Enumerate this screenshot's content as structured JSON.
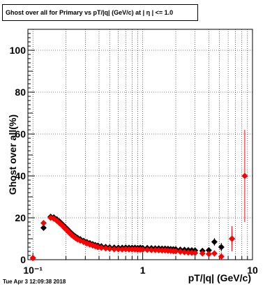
{
  "title": "Ghost over all for Primary vs pT/|q| (GeV/c) at |  η | <= 1.0",
  "timestamp": "Tue Apr  3 12:09:38 2018",
  "chart_data": {
    "type": "scatter",
    "xlabel": "pT/|q| (GeV/c)",
    "ylabel": "Ghost over all(%)",
    "xscale": "log",
    "xlim": [
      0.09,
      10
    ],
    "ylim": [
      0,
      110
    ],
    "grid": true,
    "x_ticks": [
      {
        "value": 0.1,
        "label": "10⁻¹"
      },
      {
        "value": 1,
        "label": "1"
      },
      {
        "value": 10,
        "label": "10"
      }
    ],
    "y_ticks": [
      {
        "value": 0,
        "label": "0"
      },
      {
        "value": 20,
        "label": "20"
      },
      {
        "value": 40,
        "label": "40"
      },
      {
        "value": 60,
        "label": "60"
      },
      {
        "value": 80,
        "label": "80"
      },
      {
        "value": 100,
        "label": "100"
      }
    ],
    "series": [
      {
        "color": "#000000",
        "marker": "diamond",
        "points": [
          [
            0.1,
            0.8,
            1.2
          ],
          [
            0.125,
            15.2,
            1.2
          ],
          [
            0.145,
            20.5,
            0.8
          ],
          [
            0.155,
            20.2,
            0.6
          ],
          [
            0.165,
            19.3,
            0.5
          ],
          [
            0.175,
            18.2,
            0.5
          ],
          [
            0.185,
            17.0,
            0.4
          ],
          [
            0.195,
            15.8,
            0.4
          ],
          [
            0.205,
            14.7,
            0.4
          ],
          [
            0.215,
            13.6,
            0.4
          ],
          [
            0.225,
            12.6,
            0.4
          ],
          [
            0.235,
            11.7,
            0.4
          ],
          [
            0.245,
            11.0,
            0.3
          ],
          [
            0.255,
            10.4,
            0.3
          ],
          [
            0.27,
            9.8,
            0.3
          ],
          [
            0.29,
            9.0,
            0.3
          ],
          [
            0.31,
            8.4,
            0.3
          ],
          [
            0.33,
            7.9,
            0.3
          ],
          [
            0.35,
            7.4,
            0.3
          ],
          [
            0.37,
            7.0,
            0.3
          ],
          [
            0.39,
            6.7,
            0.3
          ],
          [
            0.42,
            6.4,
            0.3
          ],
          [
            0.46,
            6.1,
            0.3
          ],
          [
            0.5,
            5.9,
            0.3
          ],
          [
            0.55,
            5.8,
            0.3
          ],
          [
            0.6,
            5.7,
            0.3
          ],
          [
            0.65,
            5.7,
            0.3
          ],
          [
            0.7,
            5.8,
            0.3
          ],
          [
            0.75,
            5.7,
            0.3
          ],
          [
            0.8,
            5.7,
            0.3
          ],
          [
            0.85,
            5.7,
            0.3
          ],
          [
            0.9,
            5.6,
            0.3
          ],
          [
            0.95,
            5.7,
            0.3
          ],
          [
            1.0,
            5.6,
            0.3
          ],
          [
            1.1,
            5.6,
            0.3
          ],
          [
            1.2,
            5.5,
            0.3
          ],
          [
            1.3,
            5.4,
            0.3
          ],
          [
            1.4,
            5.4,
            0.3
          ],
          [
            1.5,
            5.3,
            0.4
          ],
          [
            1.6,
            5.3,
            0.4
          ],
          [
            1.7,
            5.2,
            0.4
          ],
          [
            1.8,
            5.1,
            0.4
          ],
          [
            1.9,
            5.0,
            0.4
          ],
          [
            2.0,
            5.0,
            0.4
          ],
          [
            2.2,
            4.8,
            0.5
          ],
          [
            2.4,
            4.7,
            0.5
          ],
          [
            2.6,
            4.6,
            0.6
          ],
          [
            2.8,
            4.5,
            0.6
          ],
          [
            3.0,
            4.4,
            0.7
          ],
          [
            3.5,
            4.2,
            0.8
          ],
          [
            4.0,
            4.5,
            1.0
          ],
          [
            4.5,
            8.5,
            1.8
          ],
          [
            5.2,
            6.0,
            2.0
          ],
          [
            6.5,
            10.0,
            3.0
          ]
        ]
      },
      {
        "color": "#ff0000",
        "marker": "diamond",
        "points": [
          [
            0.1,
            0.8,
            1.2
          ],
          [
            0.125,
            17.5,
            1.2
          ],
          [
            0.145,
            20.0,
            0.8
          ],
          [
            0.155,
            19.6,
            0.6
          ],
          [
            0.165,
            18.6,
            0.5
          ],
          [
            0.175,
            17.4,
            0.5
          ],
          [
            0.185,
            16.3,
            0.4
          ],
          [
            0.195,
            15.0,
            0.4
          ],
          [
            0.205,
            13.9,
            0.4
          ],
          [
            0.215,
            12.8,
            0.4
          ],
          [
            0.225,
            11.8,
            0.4
          ],
          [
            0.235,
            11.0,
            0.4
          ],
          [
            0.245,
            10.3,
            0.3
          ],
          [
            0.255,
            9.7,
            0.3
          ],
          [
            0.27,
            9.1,
            0.3
          ],
          [
            0.29,
            8.4,
            0.3
          ],
          [
            0.31,
            7.8,
            0.3
          ],
          [
            0.33,
            7.2,
            0.3
          ],
          [
            0.35,
            6.8,
            0.3
          ],
          [
            0.37,
            6.4,
            0.3
          ],
          [
            0.39,
            6.0,
            0.3
          ],
          [
            0.42,
            5.7,
            0.3
          ],
          [
            0.46,
            5.4,
            0.3
          ],
          [
            0.5,
            5.2,
            0.3
          ],
          [
            0.55,
            5.0,
            0.3
          ],
          [
            0.6,
            5.0,
            0.3
          ],
          [
            0.65,
            4.9,
            0.3
          ],
          [
            0.7,
            5.0,
            0.3
          ],
          [
            0.75,
            4.9,
            0.3
          ],
          [
            0.8,
            4.9,
            0.3
          ],
          [
            0.85,
            4.9,
            0.3
          ],
          [
            0.9,
            4.8,
            0.3
          ],
          [
            0.95,
            4.8,
            0.3
          ],
          [
            1.0,
            4.8,
            0.3
          ],
          [
            1.1,
            4.7,
            0.3
          ],
          [
            1.2,
            4.6,
            0.3
          ],
          [
            1.3,
            4.6,
            0.3
          ],
          [
            1.4,
            4.5,
            0.3
          ],
          [
            1.5,
            4.4,
            0.4
          ],
          [
            1.6,
            4.4,
            0.4
          ],
          [
            1.7,
            4.3,
            0.4
          ],
          [
            1.8,
            4.2,
            0.4
          ],
          [
            1.9,
            4.1,
            0.4
          ],
          [
            2.0,
            4.0,
            0.4
          ],
          [
            2.2,
            3.8,
            0.5
          ],
          [
            2.4,
            3.6,
            0.5
          ],
          [
            2.6,
            3.4,
            0.6
          ],
          [
            2.8,
            3.3,
            0.6
          ],
          [
            3.0,
            3.2,
            0.7
          ],
          [
            3.5,
            3.0,
            0.8
          ],
          [
            4.0,
            2.7,
            1.0
          ],
          [
            4.5,
            3.0,
            1.5
          ],
          [
            5.2,
            1.5,
            2.0
          ],
          [
            6.5,
            10.0,
            6.0
          ],
          [
            8.5,
            40.0,
            22.0
          ]
        ]
      }
    ]
  }
}
